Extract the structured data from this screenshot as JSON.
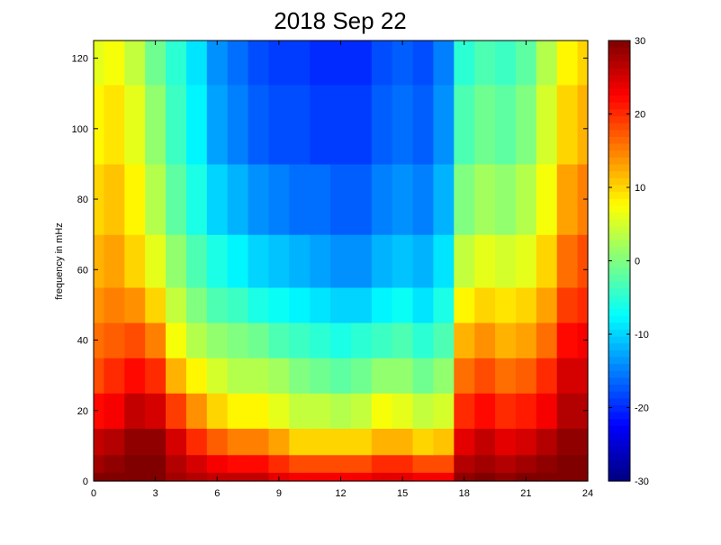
{
  "chart_data": {
    "type": "heatmap",
    "title": "2018 Sep 22",
    "xlabel": "",
    "ylabel": "frequency in mHz",
    "xlim": [
      0,
      24
    ],
    "ylim": [
      0,
      125
    ],
    "x_ticks": [
      0,
      3,
      6,
      9,
      12,
      15,
      18,
      21,
      24
    ],
    "y_ticks": [
      0,
      20,
      40,
      60,
      80,
      100,
      120
    ],
    "colorbar": {
      "colormap": "jet",
      "range": [
        -30,
        30
      ],
      "ticks": [
        30,
        20,
        10,
        0,
        -10,
        -20,
        -30
      ]
    },
    "x_hours": [
      0,
      1,
      2,
      3,
      4,
      5,
      6,
      7,
      8,
      9,
      10,
      11,
      12,
      13,
      14,
      15,
      16,
      17,
      18,
      19,
      20,
      21,
      22,
      23,
      24
    ],
    "y_freqs_mhz": [
      0,
      5,
      10,
      20,
      30,
      40,
      50,
      60,
      80,
      100,
      125
    ],
    "values_db": [
      [
        30,
        30,
        30,
        30,
        28,
        27,
        26,
        26,
        26,
        24,
        23,
        23,
        23,
        23,
        24,
        24,
        23,
        23,
        29,
        30,
        29,
        30,
        30,
        30,
        30
      ],
      [
        28,
        29,
        30,
        30,
        27,
        25,
        23,
        22,
        22,
        20,
        18,
        18,
        18,
        18,
        20,
        20,
        18,
        18,
        27,
        28,
        27,
        28,
        29,
        30,
        30
      ],
      [
        26,
        27,
        29,
        29,
        25,
        20,
        17,
        15,
        15,
        13,
        10,
        10,
        10,
        10,
        12,
        12,
        10,
        11,
        24,
        26,
        24,
        25,
        27,
        29,
        29
      ],
      [
        22,
        23,
        26,
        25,
        19,
        14,
        10,
        8,
        8,
        6,
        4,
        4,
        3,
        4,
        7,
        6,
        4,
        5,
        20,
        22,
        20,
        21,
        23,
        27,
        27
      ],
      [
        18,
        20,
        22,
        20,
        12,
        8,
        5,
        3,
        3,
        2,
        0,
        -1,
        -2,
        -1,
        1,
        1,
        -1,
        1,
        16,
        18,
        16,
        17,
        20,
        25,
        25
      ],
      [
        16,
        17,
        18,
        15,
        7,
        3,
        1,
        0,
        -1,
        -3,
        -4,
        -5,
        -6,
        -5,
        -4,
        -3,
        -5,
        -3,
        12,
        14,
        12,
        13,
        16,
        22,
        23
      ],
      [
        14,
        15,
        14,
        10,
        4,
        0,
        -3,
        -4,
        -6,
        -7,
        -8,
        -9,
        -10,
        -10,
        -8,
        -7,
        -9,
        -6,
        8,
        10,
        9,
        10,
        13,
        19,
        20
      ],
      [
        12,
        13,
        10,
        6,
        1,
        -3,
        -6,
        -8,
        -10,
        -11,
        -12,
        -13,
        -14,
        -14,
        -12,
        -11,
        -12,
        -9,
        4,
        6,
        5,
        6,
        10,
        16,
        18
      ],
      [
        10,
        11,
        8,
        3,
        -2,
        -6,
        -10,
        -12,
        -14,
        -15,
        -16,
        -16,
        -17,
        -17,
        -15,
        -14,
        -15,
        -12,
        0,
        2,
        1,
        3,
        7,
        13,
        15
      ],
      [
        8,
        9,
        6,
        1,
        -4,
        -8,
        -13,
        -15,
        -17,
        -18,
        -18,
        -19,
        -19,
        -19,
        -17,
        -16,
        -17,
        -14,
        -3,
        -1,
        -2,
        0,
        5,
        10,
        12
      ],
      [
        6,
        7,
        4,
        -1,
        -5,
        -9,
        -14,
        -16,
        -18,
        -19,
        -19,
        -20,
        -20,
        -20,
        -18,
        -17,
        -18,
        -15,
        -5,
        -3,
        -4,
        -2,
        3,
        8,
        10
      ]
    ]
  }
}
